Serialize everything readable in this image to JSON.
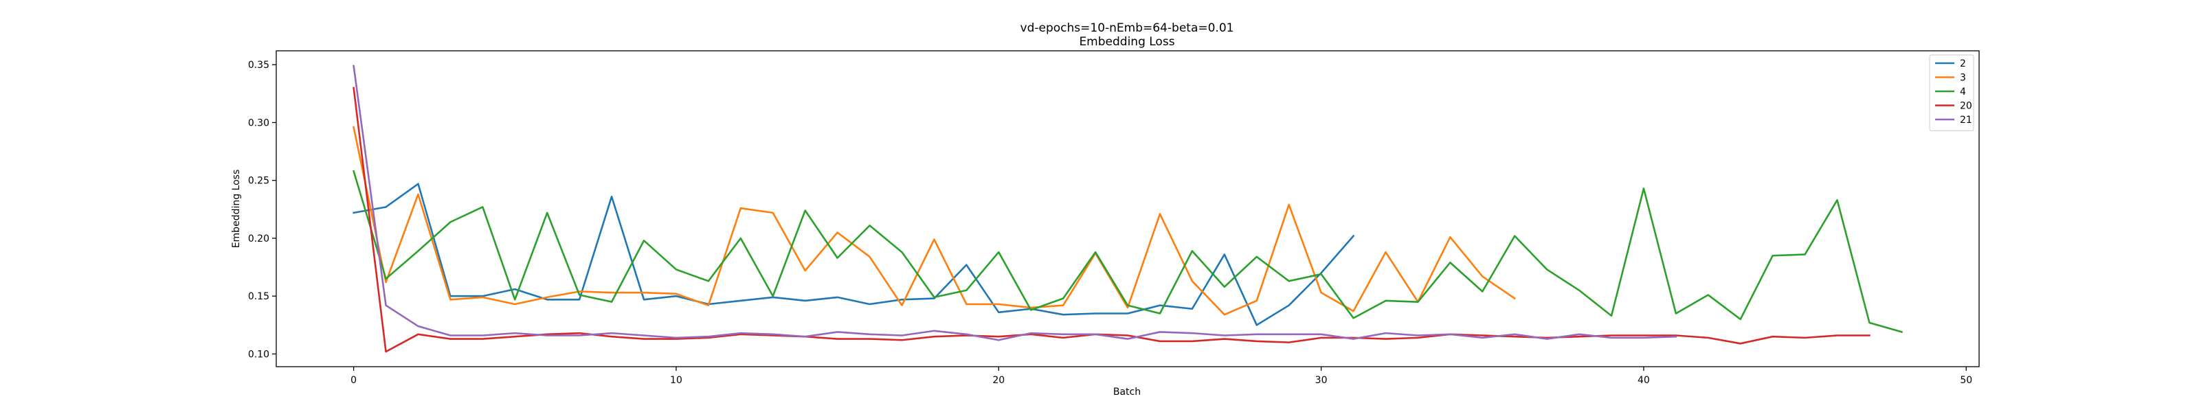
{
  "chart_data": {
    "type": "line",
    "title": "vd-epochs=10-nEmb=64-beta=0.01",
    "subtitle": "Embedding Loss",
    "xlabel": "Batch",
    "ylabel": "Embedding Loss",
    "xlim": [
      -2.4,
      50.4
    ],
    "ylim": [
      0.089,
      0.362
    ],
    "xticks": [
      0,
      10,
      20,
      30,
      40,
      50
    ],
    "yticks": [
      0.1,
      0.15,
      0.2,
      0.25,
      0.3,
      0.35
    ],
    "xtick_labels": [
      "0",
      "10",
      "20",
      "30",
      "40",
      "50"
    ],
    "ytick_labels": [
      "0.10",
      "0.15",
      "0.20",
      "0.25",
      "0.30",
      "0.35"
    ],
    "grid": false,
    "legend_position": "top-right",
    "series": [
      {
        "name": "2",
        "color": "#1f77b4",
        "values": [
          0.222,
          0.227,
          0.247,
          0.15,
          0.15,
          0.156,
          0.147,
          0.147,
          0.236,
          0.147,
          0.15,
          0.143,
          0.146,
          0.149,
          0.146,
          0.149,
          0.143,
          0.147,
          0.148,
          0.177,
          0.136,
          0.139,
          0.134,
          0.135,
          0.135,
          0.142,
          0.139,
          0.186,
          0.125,
          0.142,
          0.17,
          0.202
        ]
      },
      {
        "name": "3",
        "color": "#ff7f0e",
        "values": [
          0.296,
          0.162,
          0.238,
          0.147,
          0.149,
          0.143,
          0.149,
          0.154,
          0.153,
          0.153,
          0.152,
          0.142,
          0.226,
          0.222,
          0.172,
          0.205,
          0.184,
          0.142,
          0.199,
          0.143,
          0.143,
          0.14,
          0.142,
          0.187,
          0.14,
          0.221,
          0.163,
          0.134,
          0.146,
          0.229,
          0.153,
          0.137,
          0.188,
          0.145,
          0.201,
          0.167,
          0.148
        ]
      },
      {
        "name": "4",
        "color": "#2ca02c",
        "values": [
          0.258,
          0.165,
          0.189,
          0.214,
          0.227,
          0.147,
          0.222,
          0.151,
          0.145,
          0.198,
          0.173,
          0.163,
          0.2,
          0.15,
          0.224,
          0.183,
          0.211,
          0.188,
          0.149,
          0.155,
          0.188,
          0.138,
          0.148,
          0.188,
          0.142,
          0.135,
          0.189,
          0.158,
          0.184,
          0.163,
          0.169,
          0.131,
          0.146,
          0.145,
          0.179,
          0.154,
          0.202,
          0.173,
          0.155,
          0.133,
          0.243,
          0.135,
          0.151,
          0.13,
          0.185,
          0.186,
          0.233,
          0.127,
          0.119
        ]
      },
      {
        "name": "20",
        "color": "#d62728",
        "values": [
          0.33,
          0.102,
          0.117,
          0.113,
          0.113,
          0.115,
          0.117,
          0.118,
          0.115,
          0.113,
          0.113,
          0.114,
          0.117,
          0.116,
          0.115,
          0.113,
          0.113,
          0.112,
          0.115,
          0.116,
          0.115,
          0.117,
          0.114,
          0.117,
          0.116,
          0.111,
          0.111,
          0.113,
          0.111,
          0.11,
          0.114,
          0.114,
          0.113,
          0.114,
          0.117,
          0.116,
          0.115,
          0.114,
          0.115,
          0.116,
          0.116,
          0.116,
          0.114,
          0.109,
          0.115,
          0.114,
          0.116,
          0.116
        ]
      },
      {
        "name": "21",
        "color": "#9467bd",
        "values": [
          0.349,
          0.142,
          0.124,
          0.116,
          0.116,
          0.118,
          0.116,
          0.116,
          0.118,
          0.116,
          0.114,
          0.115,
          0.118,
          0.117,
          0.115,
          0.119,
          0.117,
          0.116,
          0.12,
          0.117,
          0.112,
          0.118,
          0.117,
          0.117,
          0.113,
          0.119,
          0.118,
          0.116,
          0.117,
          0.117,
          0.117,
          0.113,
          0.118,
          0.116,
          0.117,
          0.114,
          0.117,
          0.113,
          0.117,
          0.114,
          0.114,
          0.115
        ]
      }
    ]
  }
}
